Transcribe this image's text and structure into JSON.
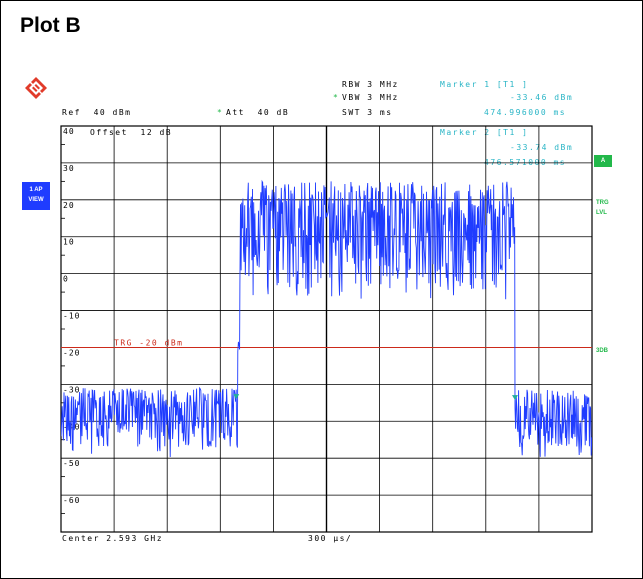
{
  "plot_title": "Plot B",
  "header": {
    "ref": "Ref  40 dBm",
    "att_star": "*",
    "att": "Att  40 dB",
    "rbw": "RBW 3 MHz",
    "vbw_star": "*",
    "vbw": "VBW 3 MHz",
    "swt": "SWT 3 ms",
    "marker1_label": "Marker 1 [T1 ]",
    "marker1_level": "-33.46 dBm",
    "marker1_time": "474.996000 ms",
    "marker2_label": "Marker 2 [T1 ]",
    "marker2_level": "-33.74 dBm",
    "marker2_time": "476.571000 ms",
    "offset": "Offset  12 dB"
  },
  "side_left": {
    "line1": "1 AP",
    "line2": "VIEW"
  },
  "side_right": {
    "a_badge": "A",
    "trg1": "TRG",
    "trg2": "LVL",
    "db3": "3DB"
  },
  "footer": {
    "center": "Center 2.593 GHz",
    "span": "300 µs/"
  },
  "trigger_label": "TRG -20 dBm",
  "colors": {
    "trace": "#1f3cff",
    "trigger_line": "#cc2a1a",
    "marker_text": "#29b5c6",
    "status_green": "#22b84a",
    "side_blue": "#1f3cff",
    "grid": "#000000"
  },
  "chart_data": {
    "type": "line",
    "xlabel": "",
    "ylabel": "",
    "y_tick_labels": [
      "40",
      "30",
      "20",
      "10",
      "0",
      "-10",
      "-20",
      "-30",
      "-40",
      "-50",
      "-60"
    ],
    "ylim": [
      -60,
      40
    ],
    "x_divisions": 10,
    "x_per_div_us": 300,
    "trigger_level_dbm": -20,
    "series": [
      {
        "segments": [
          {
            "x_div": [
              0.0,
              3.33
            ],
            "noise_floor_dbm": -47,
            "noise_peak_dbm": -31
          },
          {
            "x_div": [
              3.33,
              3.37
            ],
            "noise_floor_dbm": -25,
            "noise_peak_dbm": -15
          },
          {
            "x_div": [
              3.37,
              8.55
            ],
            "noise_floor_dbm": -4,
            "noise_peak_dbm": 25
          },
          {
            "x_div": [
              8.55,
              10.0
            ],
            "noise_floor_dbm": -47,
            "noise_peak_dbm": -31
          }
        ]
      }
    ],
    "markers": [
      {
        "name": "Marker 1",
        "x_div": 3.3,
        "level_dbm": -33.46
      },
      {
        "name": "Marker 2",
        "x_div": 8.55,
        "level_dbm": -33.74
      }
    ]
  }
}
